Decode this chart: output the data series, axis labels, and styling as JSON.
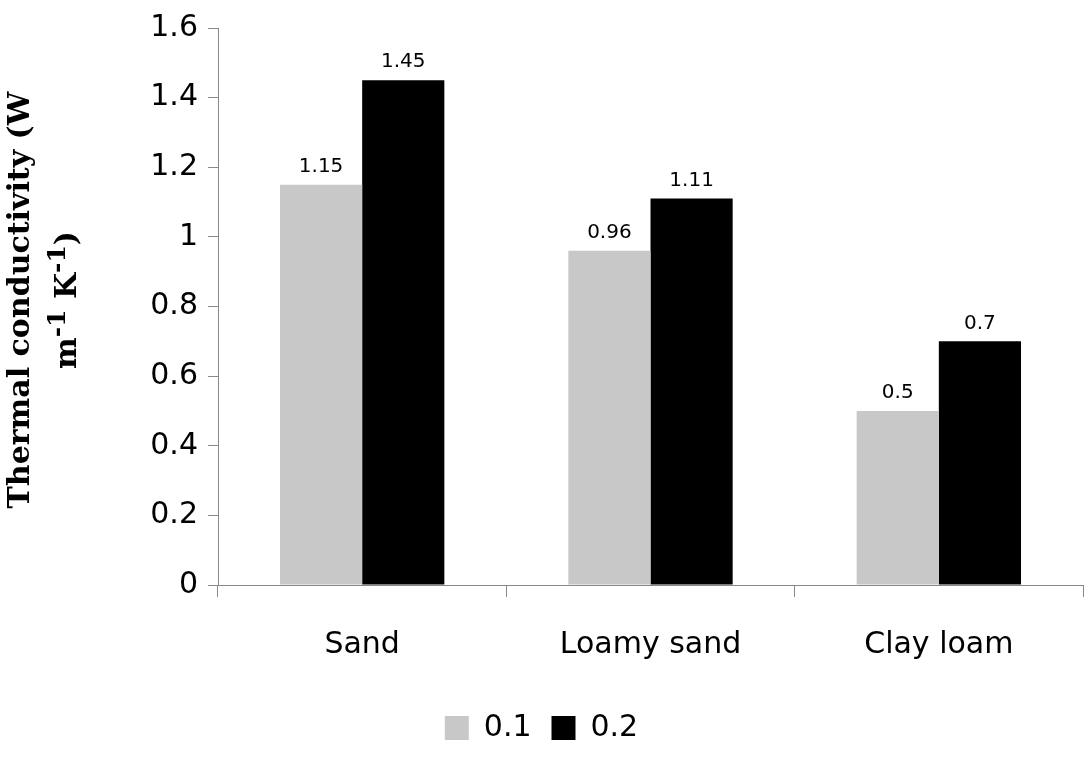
{
  "chart_data": {
    "type": "bar",
    "ylabel": "Thermal conductivity (W m$^{-1}$ K$^{-1}$)",
    "categories": [
      "Sand",
      "Loamy sand",
      "Clay loam"
    ],
    "series": [
      {
        "name": "0.1",
        "color": "#c8c8c8",
        "values": [
          1.15,
          0.96,
          0.5
        ]
      },
      {
        "name": "0.2",
        "color": "#000000",
        "values": [
          1.45,
          1.11,
          0.7
        ]
      }
    ],
    "ylim": [
      0,
      1.6
    ],
    "yticks": [
      0,
      0.2,
      0.4,
      0.6,
      0.8,
      1,
      1.2,
      1.4,
      1.6
    ],
    "grid": false,
    "legend": "bottom",
    "data_labels": true
  }
}
